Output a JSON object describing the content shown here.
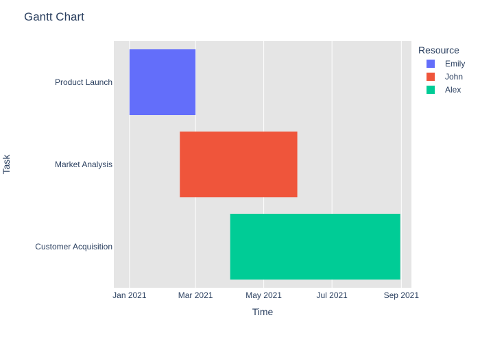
{
  "chart_data": {
    "type": "gantt",
    "title": "Gantt Chart",
    "xlabel": "Time",
    "ylabel": "Task",
    "xlim": [
      "2020-12-18",
      "2021-09-10"
    ],
    "x_ticks": [
      {
        "date": "2021-01-01",
        "label": "Jan 2021"
      },
      {
        "date": "2021-03-01",
        "label": "Mar 2021"
      },
      {
        "date": "2021-05-01",
        "label": "May 2021"
      },
      {
        "date": "2021-07-01",
        "label": "Jul 2021"
      },
      {
        "date": "2021-09-01",
        "label": "Sep 2021"
      }
    ],
    "categories": [
      "Product Launch",
      "Market Analysis",
      "Customer Acquisition"
    ],
    "legend": {
      "title": "Resource",
      "position": "top-right"
    },
    "series": [
      {
        "name": "Emily",
        "color": "#636efa",
        "task": "Product Launch",
        "start": "2021-01-01",
        "end": "2021-03-01"
      },
      {
        "name": "John",
        "color": "#ef553b",
        "task": "Market Analysis",
        "start": "2021-02-15",
        "end": "2021-05-31"
      },
      {
        "name": "Alex",
        "color": "#00cc96",
        "task": "Customer Acquisition",
        "start": "2021-04-01",
        "end": "2021-08-31"
      }
    ],
    "grid": true,
    "plot_background": "#e5e5e5"
  }
}
